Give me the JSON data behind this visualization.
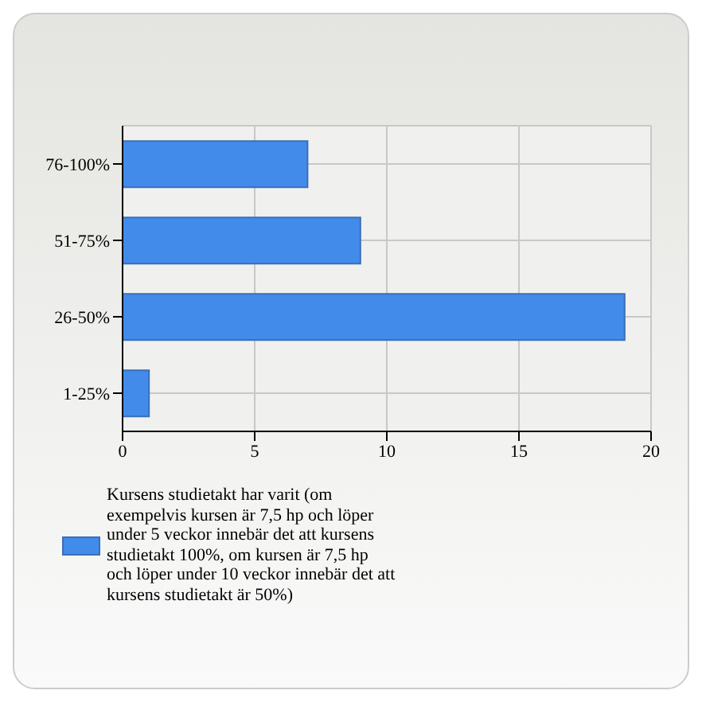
{
  "chart_data": {
    "type": "bar",
    "orientation": "horizontal",
    "categories": [
      "76-100%",
      "51-75%",
      "26-50%",
      "1-25%"
    ],
    "series": [
      {
        "name": "Kursens studietakt har varit (om exempelvis kursen är 7,5 hp och löper under 5 veckor innebär det att kursens studietakt 100%, om kursen är 7,5 hp och löper under 10 veckor innebär det att kursens studietakt är 50%)",
        "color": "#428bea",
        "values": [
          7,
          9,
          19,
          1
        ]
      }
    ],
    "xlim": [
      0,
      20
    ],
    "xticks": [
      0,
      5,
      10,
      15,
      20
    ],
    "grid": true,
    "legend": "bottom"
  }
}
